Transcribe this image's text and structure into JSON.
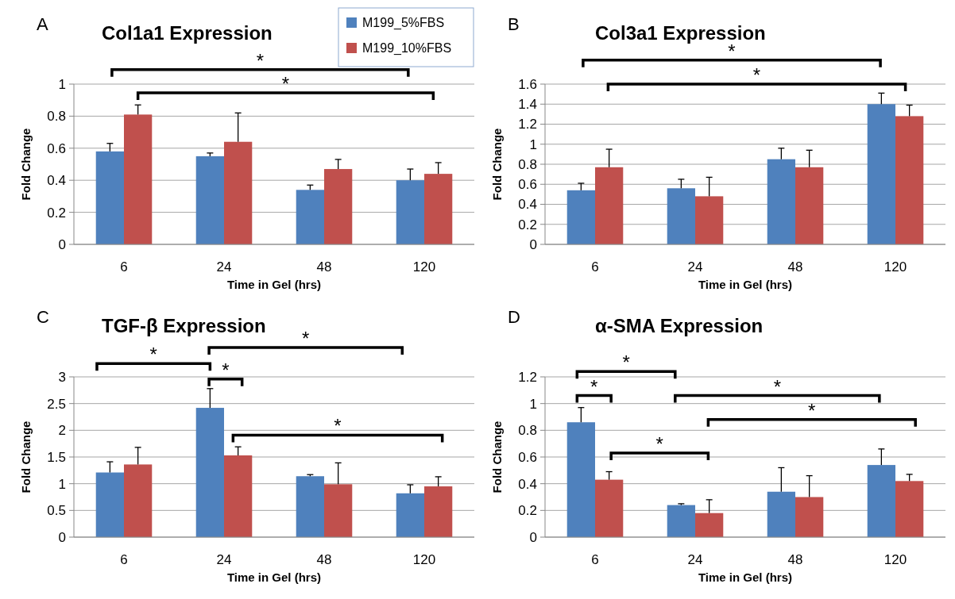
{
  "chart_data": [
    {
      "type": "bar",
      "title": "Col1a1 Expression",
      "xlabel": "Time in Gel (hrs)",
      "ylabel": "Fold Change",
      "categories": [
        "6",
        "24",
        "48",
        "120"
      ],
      "ylim": [
        0,
        1
      ],
      "yticks": [
        0,
        0.2,
        0.4,
        0.6,
        0.8,
        1
      ],
      "grid": "y",
      "legend": "top right",
      "annotations": [
        "A",
        "*",
        "*"
      ],
      "series": [
        {
          "name": "M199_5%FBS",
          "color": "#4f81bd",
          "values": [
            0.58,
            0.55,
            0.34,
            0.4
          ],
          "errors": [
            [
              0.58,
              0.63
            ],
            [
              0.55,
              0.57
            ],
            [
              0.34,
              0.37
            ],
            [
              0.4,
              0.47
            ]
          ]
        },
        {
          "name": "M199_10%FBS",
          "color": "#c0504d",
          "values": [
            0.81,
            0.64,
            0.47,
            0.44
          ],
          "errors": [
            [
              0.81,
              0.87
            ],
            [
              0.64,
              0.82
            ],
            [
              0.47,
              0.53
            ],
            [
              0.44,
              0.51
            ]
          ]
        }
      ]
    },
    {
      "type": "bar",
      "title": "Col3a1 Expression",
      "xlabel": "Time in Gel (hrs)",
      "ylabel": "Fold Change",
      "categories": [
        "6",
        "24",
        "48",
        "120"
      ],
      "ylim": [
        0,
        1.6
      ],
      "yticks": [
        0,
        0.2,
        0.4,
        0.6,
        0.8,
        1,
        1.2,
        1.4,
        1.6
      ],
      "grid": "y",
      "annotations": [
        "B",
        "*",
        "*"
      ],
      "series": [
        {
          "color": "#4f81bd",
          "values": [
            0.54,
            0.56,
            0.85,
            1.4
          ],
          "errors": [
            [
              0.54,
              0.61
            ],
            [
              0.56,
              0.65
            ],
            [
              0.85,
              0.96
            ],
            [
              1.4,
              1.51
            ]
          ]
        },
        {
          "color": "#c0504d",
          "values": [
            0.77,
            0.48,
            0.77,
            1.28
          ],
          "errors": [
            [
              0.77,
              0.95
            ],
            [
              0.48,
              0.67
            ],
            [
              0.77,
              0.94
            ],
            [
              1.28,
              1.39
            ]
          ]
        }
      ]
    },
    {
      "type": "bar",
      "title": "TGF-β Expression",
      "xlabel": "Time in Gel (hrs)",
      "ylabel": "Fold Change",
      "categories": [
        "6",
        "24",
        "48",
        "120"
      ],
      "ylim": [
        0,
        3
      ],
      "yticks": [
        0,
        0.5,
        1,
        1.5,
        2,
        2.5,
        3
      ],
      "grid": "y",
      "annotations": [
        "C",
        "*",
        "*",
        "*",
        "*"
      ],
      "series": [
        {
          "color": "#4f81bd",
          "values": [
            1.21,
            2.42,
            1.14,
            0.82
          ],
          "errors": [
            [
              1.21,
              1.41
            ],
            [
              2.42,
              2.78
            ],
            [
              1.14,
              1.17
            ],
            [
              0.82,
              0.98
            ]
          ]
        },
        {
          "color": "#c0504d",
          "values": [
            1.36,
            1.53,
            0.99,
            0.95
          ],
          "errors": [
            [
              1.36,
              1.68
            ],
            [
              1.53,
              1.69
            ],
            [
              0.99,
              1.39
            ],
            [
              0.95,
              1.13
            ]
          ]
        }
      ]
    },
    {
      "type": "bar",
      "title": "α-SMA Expression",
      "xlabel": "Time in Gel (hrs)",
      "ylabel": "Fold Change",
      "categories": [
        "6",
        "24",
        "48",
        "120"
      ],
      "ylim": [
        0,
        1.2
      ],
      "yticks": [
        0,
        0.2,
        0.4,
        0.6,
        0.8,
        1,
        1.2
      ],
      "grid": "y",
      "annotations": [
        "D",
        "*",
        "*",
        "*",
        "*",
        "*"
      ],
      "series": [
        {
          "color": "#4f81bd",
          "values": [
            0.86,
            0.24,
            0.34,
            0.54
          ],
          "errors": [
            [
              0.86,
              0.97
            ],
            [
              0.24,
              0.25
            ],
            [
              0.34,
              0.52
            ],
            [
              0.54,
              0.66
            ]
          ]
        },
        {
          "color": "#c0504d",
          "values": [
            0.43,
            0.18,
            0.3,
            0.42
          ],
          "errors": [
            [
              0.43,
              0.49
            ],
            [
              0.18,
              0.28
            ],
            [
              0.3,
              0.46
            ],
            [
              0.42,
              0.47
            ]
          ]
        }
      ]
    }
  ]
}
